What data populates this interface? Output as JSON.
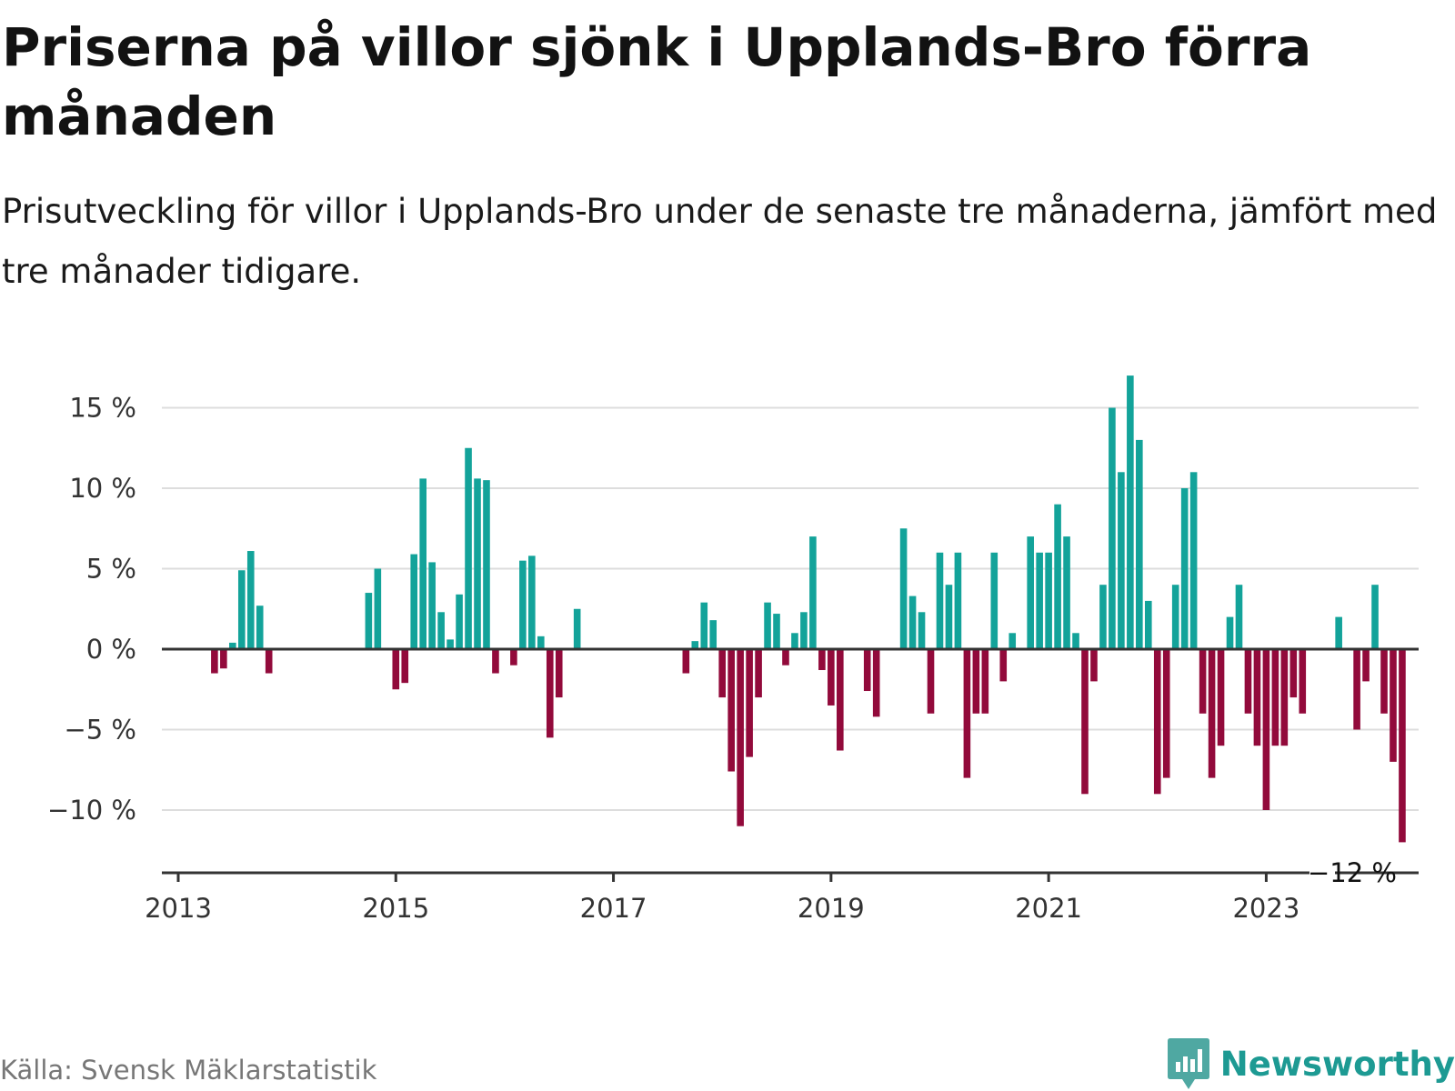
{
  "title": "Priserna på villor sjönk i Upplands-Bro förra månaden",
  "subtitle": "Prisutveckling för villor i Upplands-Bro under de senaste tre månaderna, jämfört med tre månader tidigare.",
  "source": "Källa: Svensk Mäklarstatistik",
  "brand": "Newsworthy",
  "colors": {
    "positive": "#13a39a",
    "negative": "#920a3b",
    "grid": "#dddddd",
    "axis": "#333333",
    "brand": "#1d9a93"
  },
  "chart_data": {
    "type": "bar",
    "title": "Priserna på villor sjönk i Upplands-Bro förra månaden",
    "xlabel": "",
    "ylabel": "",
    "ylim": [
      -13.7,
      17
    ],
    "yticks": [
      -10,
      -5,
      0,
      5,
      10,
      15
    ],
    "ytick_labels": [
      "−10 %",
      "−5 %",
      "0 %",
      "5 %",
      "10 %",
      "15 %"
    ],
    "xticks": [
      "2013",
      "2015",
      "2017",
      "2019",
      "2021",
      "2023"
    ],
    "last_label": "−12 %",
    "series": [
      {
        "name": "Prisutveckling",
        "start": "2013-01",
        "frequency": "monthly",
        "values": [
          null,
          null,
          null,
          null,
          -1.5,
          -1.2,
          0.4,
          4.9,
          6.1,
          2.7,
          -1.5,
          null,
          null,
          null,
          null,
          null,
          null,
          null,
          null,
          null,
          null,
          3.5,
          5.0,
          null,
          -2.5,
          -2.1,
          5.9,
          10.6,
          5.4,
          2.3,
          0.6,
          3.4,
          12.5,
          10.6,
          10.5,
          -1.5,
          null,
          -1.0,
          5.5,
          5.8,
          0.8,
          -5.5,
          -3.0,
          null,
          2.5,
          null,
          null,
          null,
          null,
          null,
          null,
          null,
          null,
          null,
          null,
          null,
          -1.5,
          0.5,
          2.9,
          1.8,
          -3.0,
          -7.6,
          -11.0,
          -6.7,
          -3.0,
          2.9,
          2.2,
          -1.0,
          1.0,
          2.3,
          7.0,
          -1.3,
          -3.5,
          -6.3,
          null,
          null,
          -2.6,
          -4.2,
          null,
          null,
          7.5,
          3.3,
          2.3,
          -4.0,
          6.0,
          4.0,
          6.0,
          -8.0,
          -4.0,
          -4.0,
          6.0,
          -2.0,
          1.0,
          null,
          7.0,
          6.0,
          6.0,
          9.0,
          7.0,
          1.0,
          -9.0,
          -2.0,
          4.0,
          15.0,
          11.0,
          17.0,
          13.0,
          3.0,
          -9.0,
          -8.0,
          4.0,
          10.0,
          11.0,
          -4.0,
          -8.0,
          -6.0,
          2.0,
          4.0,
          -4.0,
          -6.0,
          -10.0,
          -6.0,
          -6.0,
          -3.0,
          -4.0,
          null,
          null,
          null,
          2.0,
          null,
          -5.0,
          -2.0,
          4.0,
          -4.0,
          -7.0,
          -12.0
        ]
      }
    ]
  }
}
